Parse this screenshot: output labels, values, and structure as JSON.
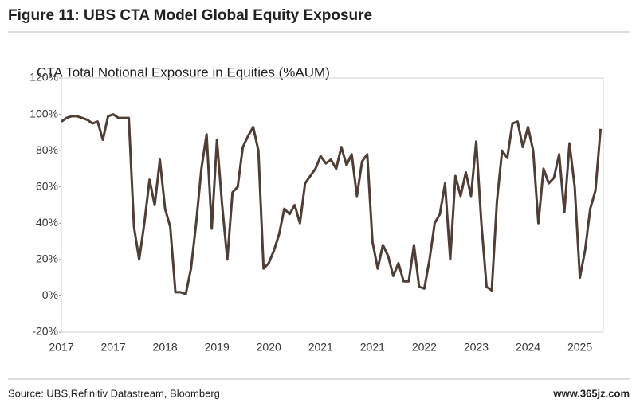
{
  "chart_data": {
    "type": "line",
    "title": "Figure 11: UBS CTA Model Global Equity Exposure",
    "subtitle": "CTA Total Notional Exposure in Equities  (%AUM)",
    "source": "Source: UBS,Refinitiv Datastream, Bloomberg",
    "watermark": "www.365jz.com",
    "categories": [
      "2017",
      null,
      null,
      null,
      null,
      null,
      null,
      null,
      null,
      null,
      "2017",
      null,
      null,
      null,
      null,
      null,
      null,
      null,
      null,
      null,
      "2018",
      null,
      null,
      null,
      null,
      null,
      null,
      null,
      null,
      null,
      "2019",
      null,
      null,
      null,
      null,
      null,
      null,
      null,
      null,
      null,
      "2020",
      null,
      null,
      null,
      null,
      null,
      null,
      null,
      null,
      null,
      "2021",
      null,
      null,
      null,
      null,
      null,
      null,
      null,
      null,
      null,
      "2021",
      null,
      null,
      null,
      null,
      null,
      null,
      null,
      null,
      null,
      "2022",
      null,
      null,
      null,
      null,
      null,
      null,
      null,
      null,
      null,
      "2023",
      null,
      null,
      null,
      null,
      null,
      null,
      null,
      null,
      null,
      "2024",
      null,
      null,
      null,
      null,
      null,
      null,
      null,
      null,
      null,
      "2025",
      null,
      null,
      null,
      null
    ],
    "series": [
      {
        "name": "CTA Total Notional Exposure in Equities",
        "color": "#4e3e36",
        "values": [
          96,
          98,
          99,
          99,
          98,
          97,
          95,
          96,
          86,
          99,
          100,
          98,
          98,
          98,
          38,
          20,
          40,
          64,
          50,
          75,
          48,
          38,
          2,
          2,
          1,
          15,
          40,
          70,
          89,
          37,
          86,
          50,
          20,
          57,
          60,
          82,
          88,
          93,
          80,
          15,
          18,
          25,
          34,
          48,
          45,
          50,
          40,
          62,
          66,
          70,
          77,
          73,
          75,
          70,
          82,
          72,
          78,
          55,
          74,
          78,
          30,
          15,
          28,
          22,
          11,
          18,
          8,
          8,
          28,
          5,
          4,
          20,
          40,
          45,
          62,
          20,
          66,
          55,
          68,
          55,
          85,
          40,
          5,
          3,
          52,
          80,
          76,
          95,
          96,
          82,
          93,
          80,
          40,
          70,
          62,
          65,
          78,
          46,
          84,
          60,
          10,
          25,
          48,
          58,
          92
        ]
      }
    ],
    "ylim": [
      -20,
      120
    ],
    "yticks": [
      {
        "value": -20,
        "label": "-20%"
      },
      {
        "value": 0,
        "label": "0%"
      },
      {
        "value": 20,
        "label": "20%"
      },
      {
        "value": 40,
        "label": "40%"
      },
      {
        "value": 60,
        "label": "60%"
      },
      {
        "value": 80,
        "label": "80%"
      },
      {
        "value": 100,
        "label": "100%"
      },
      {
        "value": 120,
        "label": "120%"
      }
    ]
  }
}
